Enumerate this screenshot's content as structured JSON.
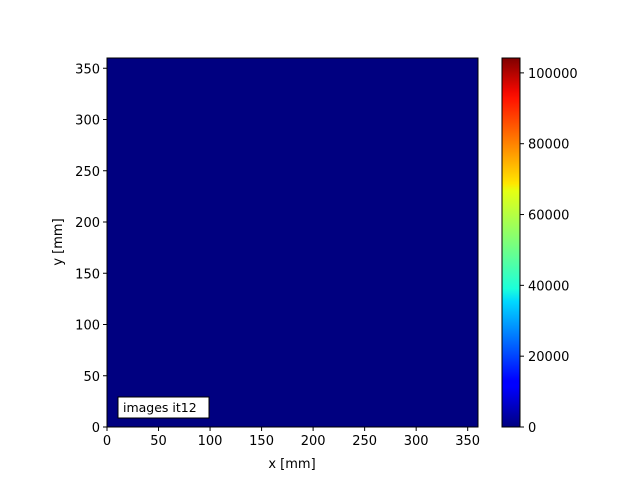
{
  "chart_data": {
    "type": "heatmap",
    "title": "",
    "xlabel": "x [mm]",
    "ylabel": "y [mm]",
    "xlim": [
      0,
      360
    ],
    "ylim": [
      0,
      360
    ],
    "xticks": [
      0,
      50,
      100,
      150,
      200,
      250,
      300,
      350
    ],
    "yticks": [
      0,
      50,
      100,
      150,
      200,
      250,
      300,
      350
    ],
    "colormap": "jet",
    "values": [
      [
        0
      ]
    ],
    "colorbar": {
      "range": [
        0,
        104200
      ],
      "ticks": [
        0,
        20000,
        40000,
        60000,
        80000,
        100000
      ]
    },
    "annotation": "images it12",
    "grid": false,
    "colors": {
      "field": "#000080"
    }
  }
}
